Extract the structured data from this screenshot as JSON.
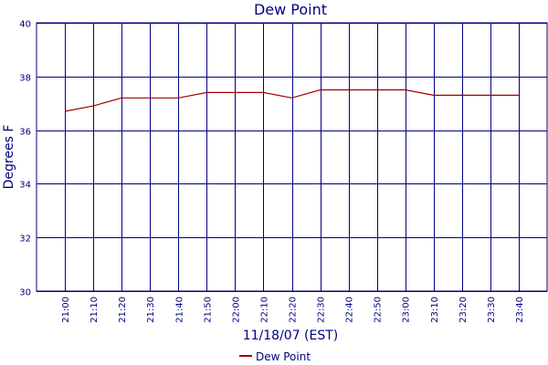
{
  "chart_data": {
    "type": "line",
    "title": "Dew Point",
    "xlabel": "11/18/07 (EST)",
    "ylabel": "Degrees F",
    "categories": [
      "21:00",
      "21:10",
      "21:20",
      "21:30",
      "21:40",
      "21:50",
      "22:00",
      "22:10",
      "22:20",
      "22:30",
      "22:40",
      "22:50",
      "23:00",
      "23:10",
      "23:20",
      "23:30",
      "23:40"
    ],
    "yticks": [
      "30",
      "32",
      "34",
      "36",
      "38",
      "40"
    ],
    "ylim": [
      30,
      40
    ],
    "grid": true,
    "legend_position": "bottom",
    "series": [
      {
        "name": "Dew Point",
        "color": "#a00000",
        "values": [
          36.7,
          36.9,
          37.2,
          37.2,
          37.2,
          37.4,
          37.4,
          37.4,
          37.2,
          37.5,
          37.5,
          37.5,
          37.5,
          37.3,
          37.3,
          37.3,
          37.3
        ]
      }
    ],
    "colors": {
      "grid": "#000080",
      "text": "#000080"
    }
  }
}
